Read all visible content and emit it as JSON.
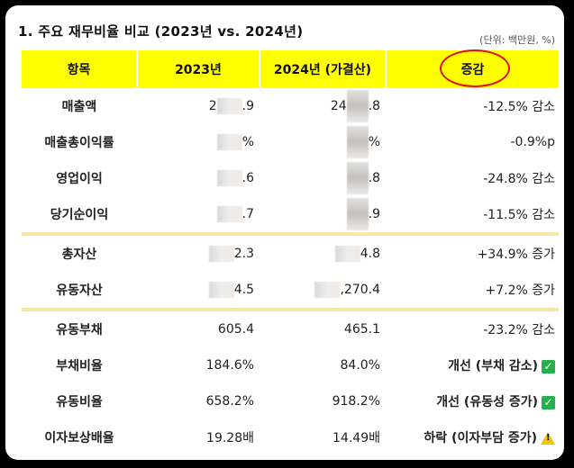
{
  "heading": "1. 주요 재무비율 비교 (2023년 vs. 2024년)",
  "unit": "(단위: 백만원, %)",
  "columns": [
    "항목",
    "2023년",
    "2024년 (가결산)",
    "증감"
  ],
  "rows": [
    {
      "label": "매출액",
      "v2023": "2",
      "v2023_tail": ".9",
      "v2024": "24",
      "v2024_tail": ".8",
      "change": "-12.5%  감소"
    },
    {
      "label": "매출총이익률",
      "v2023": "",
      "v2023_tail": "%",
      "v2024": "",
      "v2024_tail": "%",
      "change": "-0.9%p"
    },
    {
      "label": "영업이익",
      "v2023": "",
      "v2023_tail": ".6",
      "v2024": "",
      "v2024_tail": ".8",
      "change": "-24.8%  감소"
    },
    {
      "label": "당기순이익",
      "v2023": "",
      "v2023_tail": ".7",
      "v2024": "",
      "v2024_tail": ".9",
      "change": "-11.5%  감소"
    },
    {
      "label": "총자산",
      "v2023": "",
      "v2023_tail": "2.3",
      "v2024": "",
      "v2024_tail": "4.8",
      "change": "+34.9%  증가"
    },
    {
      "label": "유동자산",
      "v2023": "",
      "v2023_tail": "4.5",
      "v2024": "",
      "v2024_tail": ",270.4",
      "change": "+7.2%  증가"
    },
    {
      "label": "유동부채",
      "v2023": "605.4",
      "v2023_tail": "",
      "v2024": "465.1",
      "v2024_tail": "",
      "change": "-23.2%  감소"
    },
    {
      "label": "부채비율",
      "v2023": "184.6%",
      "v2023_tail": "",
      "v2024": "84.0%",
      "v2024_tail": "",
      "change": "개선 (부채 감소)"
    },
    {
      "label": "유동비율",
      "v2023": "658.2%",
      "v2023_tail": "",
      "v2024": "918.2%",
      "v2024_tail": "",
      "change": "개선 (유동성 증가)"
    },
    {
      "label": "이자보상배율",
      "v2023": "19.28배",
      "v2023_tail": "",
      "v2024": "14.49배",
      "v2024_tail": "",
      "change": "하락 (이자부담 증가)"
    }
  ],
  "colors": {
    "header_bg": "#ffff00",
    "separator": "#f6e7a6",
    "highlight_circle": "#e01010",
    "check": "#22b14c",
    "warning": "#f5c400"
  }
}
